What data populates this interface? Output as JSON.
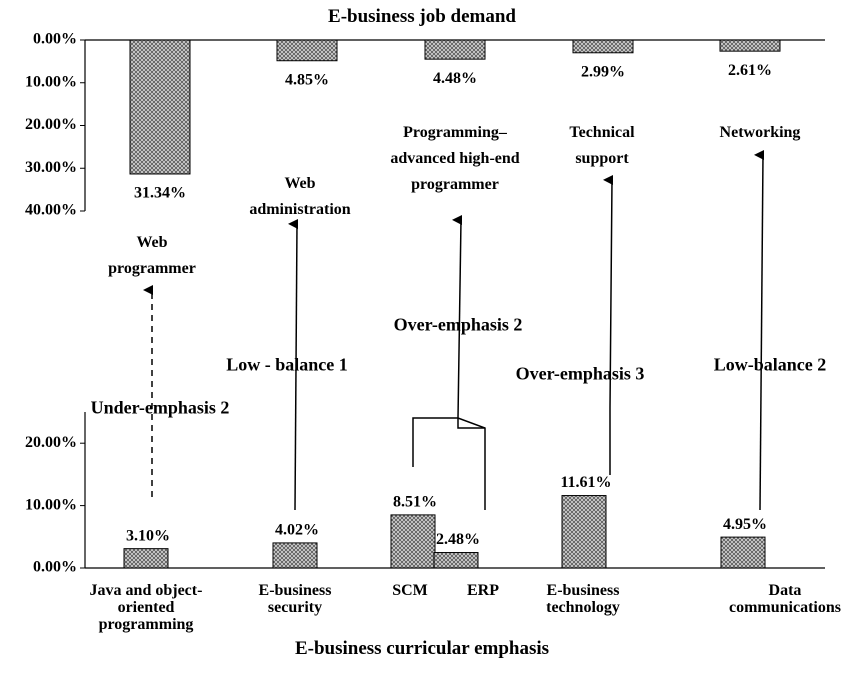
{
  "chart_data": [
    {
      "type": "bar",
      "title": "E-business job demand",
      "inverted": true,
      "color": "#999999",
      "categories": [
        "Web programmer",
        "Web administration",
        "Programming– advanced high-end programmer",
        "Technical support",
        "Networking"
      ],
      "values": [
        31.34,
        4.85,
        4.48,
        2.99,
        2.61
      ],
      "value_labels": [
        "31.34%",
        "4.85%",
        "4.48%",
        "2.99%",
        "2.61%"
      ],
      "ylim": [
        0,
        40
      ],
      "yticks": [
        {
          "value": 0,
          "label": "0.00%"
        },
        {
          "value": 10,
          "label": "10.00%"
        },
        {
          "value": 20,
          "label": "20.00%"
        },
        {
          "value": 30,
          "label": "30.00%"
        },
        {
          "value": 40,
          "label": "40.00%"
        }
      ]
    },
    {
      "type": "bar",
      "title": "E-business curricular emphasis",
      "color": "#999999",
      "categories": [
        "Java and object-oriented programming",
        "E-business security",
        "SCM",
        "ERP",
        "E-business technology",
        "Data communications"
      ],
      "values": [
        3.1,
        4.02,
        8.51,
        2.48,
        11.61,
        4.95
      ],
      "value_labels": [
        "3.10%",
        "4.02%",
        "8.51%",
        "2.48%",
        "11.61%",
        "4.95%"
      ],
      "ylim": [
        0,
        25
      ],
      "yticks": [
        {
          "value": 0,
          "label": "0.00%"
        },
        {
          "value": 10,
          "label": "10.00%"
        },
        {
          "value": 20,
          "label": "20.00%"
        }
      ]
    }
  ],
  "annotations": [
    "Under-emphasis 2",
    "Low - balance 1",
    "Over-emphasis 2",
    "Over-emphasis 3",
    "Low-balance 2"
  ]
}
